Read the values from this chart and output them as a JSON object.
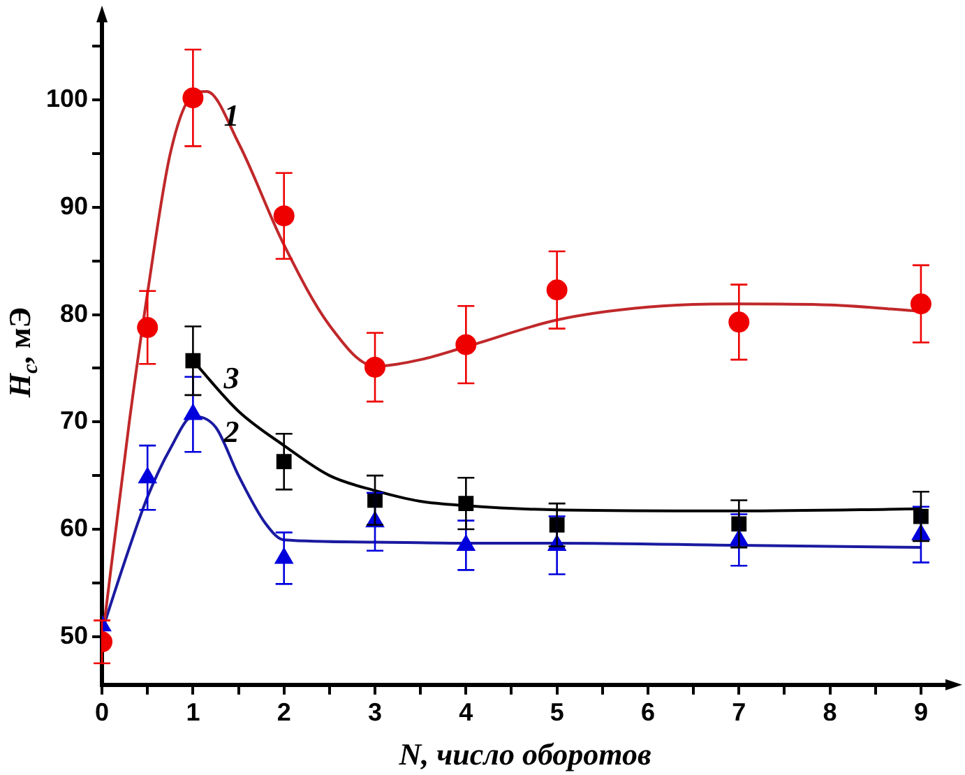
{
  "chart_data": {
    "type": "scatter",
    "xlabel": "N, число оборотов",
    "ylabel": "H$_{c}$, мЭ",
    "xlim": [
      0,
      9.3
    ],
    "xticks": [
      0,
      {
        "value": 0.5,
        "label": null
      },
      1,
      {
        "value": 1.5,
        "label": null
      },
      2,
      {
        "value": 2.5,
        "label": null
      },
      3,
      {
        "value": 3.5,
        "label": null
      },
      4,
      {
        "value": 4.5,
        "label": null
      },
      5,
      {
        "value": 5.5,
        "label": null
      },
      6,
      {
        "value": 6.5,
        "label": null
      },
      7,
      {
        "value": 7.5,
        "label": null
      },
      8,
      {
        "value": 8.5,
        "label": null
      },
      9
    ],
    "ylim": [
      45.5,
      107.5
    ],
    "yticks": [
      50,
      {
        "value": 55,
        "label": null
      },
      60,
      {
        "value": 65,
        "label": null
      },
      70,
      {
        "value": 75,
        "label": null
      },
      80,
      {
        "value": 85,
        "label": null
      },
      90,
      {
        "value": 95,
        "label": null
      },
      100,
      {
        "value": 105,
        "label": null
      }
    ],
    "grid": false,
    "legend": false,
    "series": [
      {
        "type": "scatter",
        "name": "1",
        "marker": "circle",
        "color": "#ee0000",
        "x": [
          0,
          0.5,
          1,
          2,
          3,
          4,
          5,
          7,
          9
        ],
        "values": [
          49.5,
          78.8,
          100.2,
          89.2,
          75.1,
          77.2,
          82.3,
          79.3,
          81.0
        ],
        "errors": [
          2,
          3.4,
          4.5,
          4,
          3.2,
          3.6,
          3.6,
          3.5,
          3.6
        ]
      },
      {
        "type": "scatter",
        "name": "2",
        "marker": "triangle",
        "color": "#0000dd",
        "x": [
          0,
          0.5,
          1,
          2,
          3,
          4,
          5,
          7,
          9
        ],
        "values": [
          51.0,
          64.8,
          70.7,
          57.3,
          60.7,
          58.5,
          58.5,
          59.0,
          59.5
        ],
        "errors": [
          null,
          3,
          3.5,
          2.4,
          2.7,
          2.3,
          2.7,
          2.4,
          2.6
        ]
      },
      {
        "type": "scatter",
        "name": "3",
        "marker": "square",
        "color": "#000000",
        "x": [
          1,
          2,
          3,
          4,
          5,
          7,
          9
        ],
        "values": [
          75.7,
          66.3,
          62.7,
          62.4,
          60.4,
          60.5,
          61.2
        ],
        "errors": [
          3.2,
          2.6,
          2.3,
          2.4,
          2,
          2.2,
          2.3
        ]
      },
      {
        "type": "line",
        "marker": "none",
        "color": "#c0282a",
        "x": [
          0,
          0.3,
          0.5,
          0.75,
          1,
          1.15,
          1.5,
          2,
          2.5,
          3,
          3.5,
          4,
          5,
          6,
          7,
          8,
          9
        ],
        "values": [
          49.5,
          70,
          82,
          95,
          100.5,
          100.8,
          96,
          86.5,
          79,
          75.2,
          75.8,
          77,
          79.5,
          80.7,
          81,
          80.9,
          80.3
        ]
      },
      {
        "type": "line",
        "marker": "none",
        "color": "#1a1aa0",
        "x": [
          0,
          0.25,
          0.5,
          0.75,
          1,
          1.25,
          1.5,
          1.8,
          2,
          3,
          4,
          5,
          7,
          9
        ],
        "values": [
          50.5,
          57,
          63,
          67.5,
          70.5,
          69.5,
          65,
          60.5,
          59,
          58.8,
          58.7,
          58.7,
          58.5,
          58.3
        ]
      },
      {
        "type": "line",
        "marker": "none",
        "color": "#000000",
        "x": [
          1,
          1.5,
          2,
          2.5,
          3,
          3.5,
          4,
          5,
          7,
          9
        ],
        "values": [
          75.7,
          71,
          67.8,
          65,
          63.6,
          62.6,
          62.2,
          61.8,
          61.7,
          61.9
        ]
      }
    ]
  }
}
